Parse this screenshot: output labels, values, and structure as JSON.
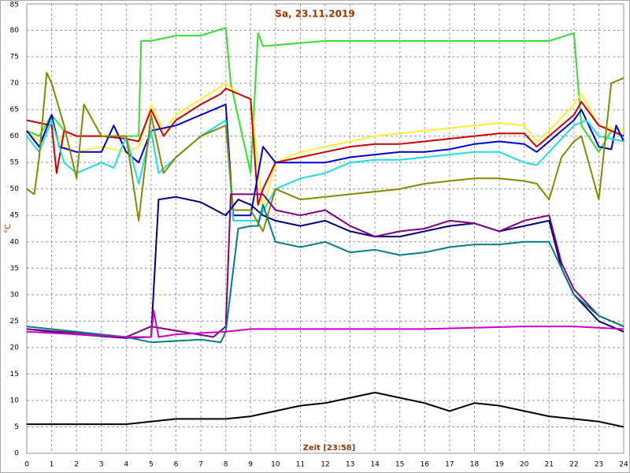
{
  "chart_data": {
    "type": "line",
    "title": "Sa, 23.11.2019",
    "y_label": "°C",
    "x_label": "Zeit [23:58]",
    "xlim": [
      0,
      24
    ],
    "xticks": [
      0,
      1,
      2,
      3,
      4,
      5,
      6,
      7,
      8,
      9,
      10,
      11,
      12,
      13,
      14,
      15,
      16,
      17,
      18,
      19,
      20,
      21,
      22,
      23,
      24
    ],
    "ylim": [
      0,
      85
    ],
    "yticks": [
      0,
      5,
      10,
      15,
      20,
      25,
      30,
      35,
      40,
      45,
      50,
      55,
      60,
      65,
      70,
      75,
      80,
      85
    ],
    "grid": true,
    "series": [
      {
        "color": "#33dd33",
        "x": [
          0,
          0.5,
          1,
          1.5,
          2,
          3,
          4,
          4.5,
          4.6,
          5,
          6,
          7,
          8,
          8.2,
          9,
          9.3,
          9.5,
          12,
          15,
          18,
          21,
          22,
          22.3,
          23,
          23.5,
          24
        ],
        "values": [
          61,
          60,
          64,
          61,
          60,
          60,
          60,
          60,
          78,
          78,
          79,
          79,
          80.5,
          70,
          53,
          79.5,
          77,
          78,
          78,
          78,
          78,
          79.5,
          62,
          57,
          61,
          60
        ]
      },
      {
        "color": "#ffee33",
        "x": [
          0,
          0.5,
          1,
          1.5,
          2,
          3,
          4,
          4.5,
          5,
          5.5,
          6,
          7,
          8,
          8.5,
          9,
          9.5,
          10,
          11,
          12,
          13,
          14,
          15,
          16,
          17,
          18,
          19,
          20,
          20.5,
          21,
          22,
          22.3,
          23,
          24
        ],
        "values": [
          61,
          59,
          62,
          58,
          57,
          58,
          57,
          58,
          66,
          61,
          64,
          67,
          70,
          68,
          67,
          46,
          55,
          57,
          58,
          59,
          60,
          60.5,
          61,
          61.5,
          62,
          62.5,
          62,
          59,
          61,
          66,
          68,
          62,
          61
        ]
      },
      {
        "color": "#cc0000",
        "x": [
          0,
          0.5,
          1,
          1.2,
          1.5,
          2,
          3,
          4,
          4.5,
          5,
          5.5,
          6,
          7,
          7.8,
          8,
          8.5,
          9,
          9.3,
          9.5,
          10,
          11,
          12,
          13,
          14,
          15,
          16,
          17,
          18,
          19,
          20,
          20.5,
          21,
          22,
          22.3,
          23,
          24
        ],
        "values": [
          63,
          62.5,
          62,
          53,
          61,
          60,
          60,
          59.5,
          59,
          65,
          60,
          63,
          66,
          68,
          69,
          68,
          67,
          47,
          50,
          55,
          56,
          57,
          58,
          58.5,
          58.5,
          59,
          59.5,
          60,
          60.5,
          60.5,
          58,
          60,
          64,
          66.5,
          62,
          60
        ]
      },
      {
        "color": "#0000cc",
        "x": [
          0,
          0.5,
          1,
          1.3,
          2,
          3,
          3.5,
          4,
          4.5,
          5,
          6,
          7,
          8,
          8.3,
          9,
          9.5,
          10,
          11,
          12,
          13,
          14,
          15,
          16,
          17,
          18,
          19,
          20,
          20.5,
          21,
          22,
          22.3,
          23,
          23.5,
          23.7,
          24
        ],
        "values": [
          61,
          58,
          64,
          58,
          57,
          57,
          62,
          57,
          55,
          61,
          62,
          64,
          66,
          45,
          45,
          58,
          55,
          55,
          55,
          56,
          56.5,
          57,
          57,
          57.5,
          58.5,
          59,
          58.5,
          57,
          59,
          63,
          65,
          58,
          57.5,
          62,
          59
        ]
      },
      {
        "color": "#22dddd",
        "x": [
          0,
          0.5,
          1,
          1.5,
          2,
          3,
          3.5,
          4,
          4.5,
          5,
          5.3,
          6,
          7,
          8,
          8.3,
          9,
          9.3,
          10,
          11,
          12,
          13,
          14,
          15,
          16,
          17,
          18,
          19,
          20,
          20.5,
          21,
          22,
          22.5,
          23,
          24
        ],
        "values": [
          60,
          57,
          63,
          55,
          53,
          55,
          54,
          60,
          51,
          61,
          53,
          56,
          60,
          63,
          44,
          44,
          44,
          50,
          52,
          53,
          55,
          55.5,
          55.5,
          56,
          56.5,
          57,
          57,
          55,
          54.5,
          57,
          62,
          63,
          60,
          59
        ]
      },
      {
        "color": "#888800",
        "x": [
          0,
          0.3,
          0.5,
          0.8,
          1,
          1.5,
          2,
          2.3,
          3,
          4,
          4.5,
          5,
          5.5,
          6,
          7,
          8,
          8.3,
          9,
          9.5,
          10,
          11,
          12,
          13,
          14,
          15,
          16,
          17,
          18,
          19,
          20,
          20.5,
          21,
          21.5,
          22,
          22.3,
          23,
          23.5,
          24
        ],
        "values": [
          50,
          49,
          56,
          72,
          70,
          62,
          52,
          66,
          60,
          60,
          44,
          64,
          53,
          56,
          60,
          62,
          46,
          46,
          42,
          50,
          48,
          48.5,
          49,
          49.5,
          50,
          51,
          51.5,
          52,
          52,
          51.5,
          51,
          48,
          56,
          59,
          60,
          48,
          70,
          71
        ]
      },
      {
        "color": "#000080",
        "x": [
          0,
          2,
          4,
          5,
          5.3,
          6,
          7,
          8,
          8.5,
          9,
          9.5,
          10,
          11,
          12,
          13,
          14,
          15,
          16,
          17,
          18,
          19,
          20,
          21,
          21.5,
          22,
          23,
          24
        ],
        "values": [
          23.5,
          22.5,
          21.8,
          22,
          48,
          48.5,
          47.5,
          45,
          48,
          47,
          45,
          44,
          43,
          44,
          42,
          41,
          41,
          42,
          43,
          43.5,
          42,
          43,
          44,
          35,
          30,
          25,
          23
        ]
      },
      {
        "color": "#800080",
        "x": [
          0,
          4,
          5,
          7.5,
          8,
          8.2,
          9,
          9.5,
          10,
          11,
          12,
          13,
          14,
          15,
          16,
          17,
          18,
          19,
          20,
          21,
          21.5,
          22,
          23,
          24
        ],
        "values": [
          23.5,
          22,
          24,
          22,
          24,
          49,
          49,
          49,
          46,
          45,
          46,
          43,
          41,
          42,
          42.5,
          44,
          43.5,
          42,
          44,
          45,
          36,
          31,
          26,
          24
        ]
      },
      {
        "color": "#008080",
        "x": [
          0,
          2,
          4,
          5,
          7,
          7.8,
          8,
          8.5,
          9,
          9.3,
          9.5,
          10,
          11,
          12,
          13,
          14,
          15,
          16,
          17,
          18,
          19,
          20,
          21,
          21.5,
          22,
          23,
          24
        ],
        "values": [
          24,
          23,
          22,
          21,
          21.5,
          21,
          23,
          42.5,
          43,
          43,
          47,
          40,
          39,
          40,
          38,
          38.5,
          37.5,
          38,
          39,
          39.5,
          39.5,
          40,
          40,
          35,
          30,
          26,
          24
        ]
      },
      {
        "color": "#cc00cc",
        "x": [
          0,
          2,
          4,
          5,
          5.1,
          5.3,
          6,
          8,
          9,
          12,
          16,
          20,
          22,
          24
        ],
        "values": [
          23,
          22.5,
          22,
          22,
          27,
          22,
          22.5,
          23,
          23.5,
          23.5,
          23.5,
          24,
          24,
          23.5
        ]
      },
      {
        "color": "#000000",
        "x": [
          0,
          2,
          4,
          5,
          6,
          7,
          8,
          9,
          10,
          11,
          12,
          13,
          14,
          15,
          16,
          17,
          18,
          19,
          20,
          21,
          22,
          23,
          24
        ],
        "values": [
          5.5,
          5.5,
          5.5,
          6,
          6.5,
          6.5,
          6.5,
          7,
          8,
          9,
          9.5,
          10.5,
          11.5,
          10.5,
          9.5,
          8,
          9.5,
          9,
          8,
          7,
          6.5,
          6,
          5
        ]
      }
    ]
  }
}
